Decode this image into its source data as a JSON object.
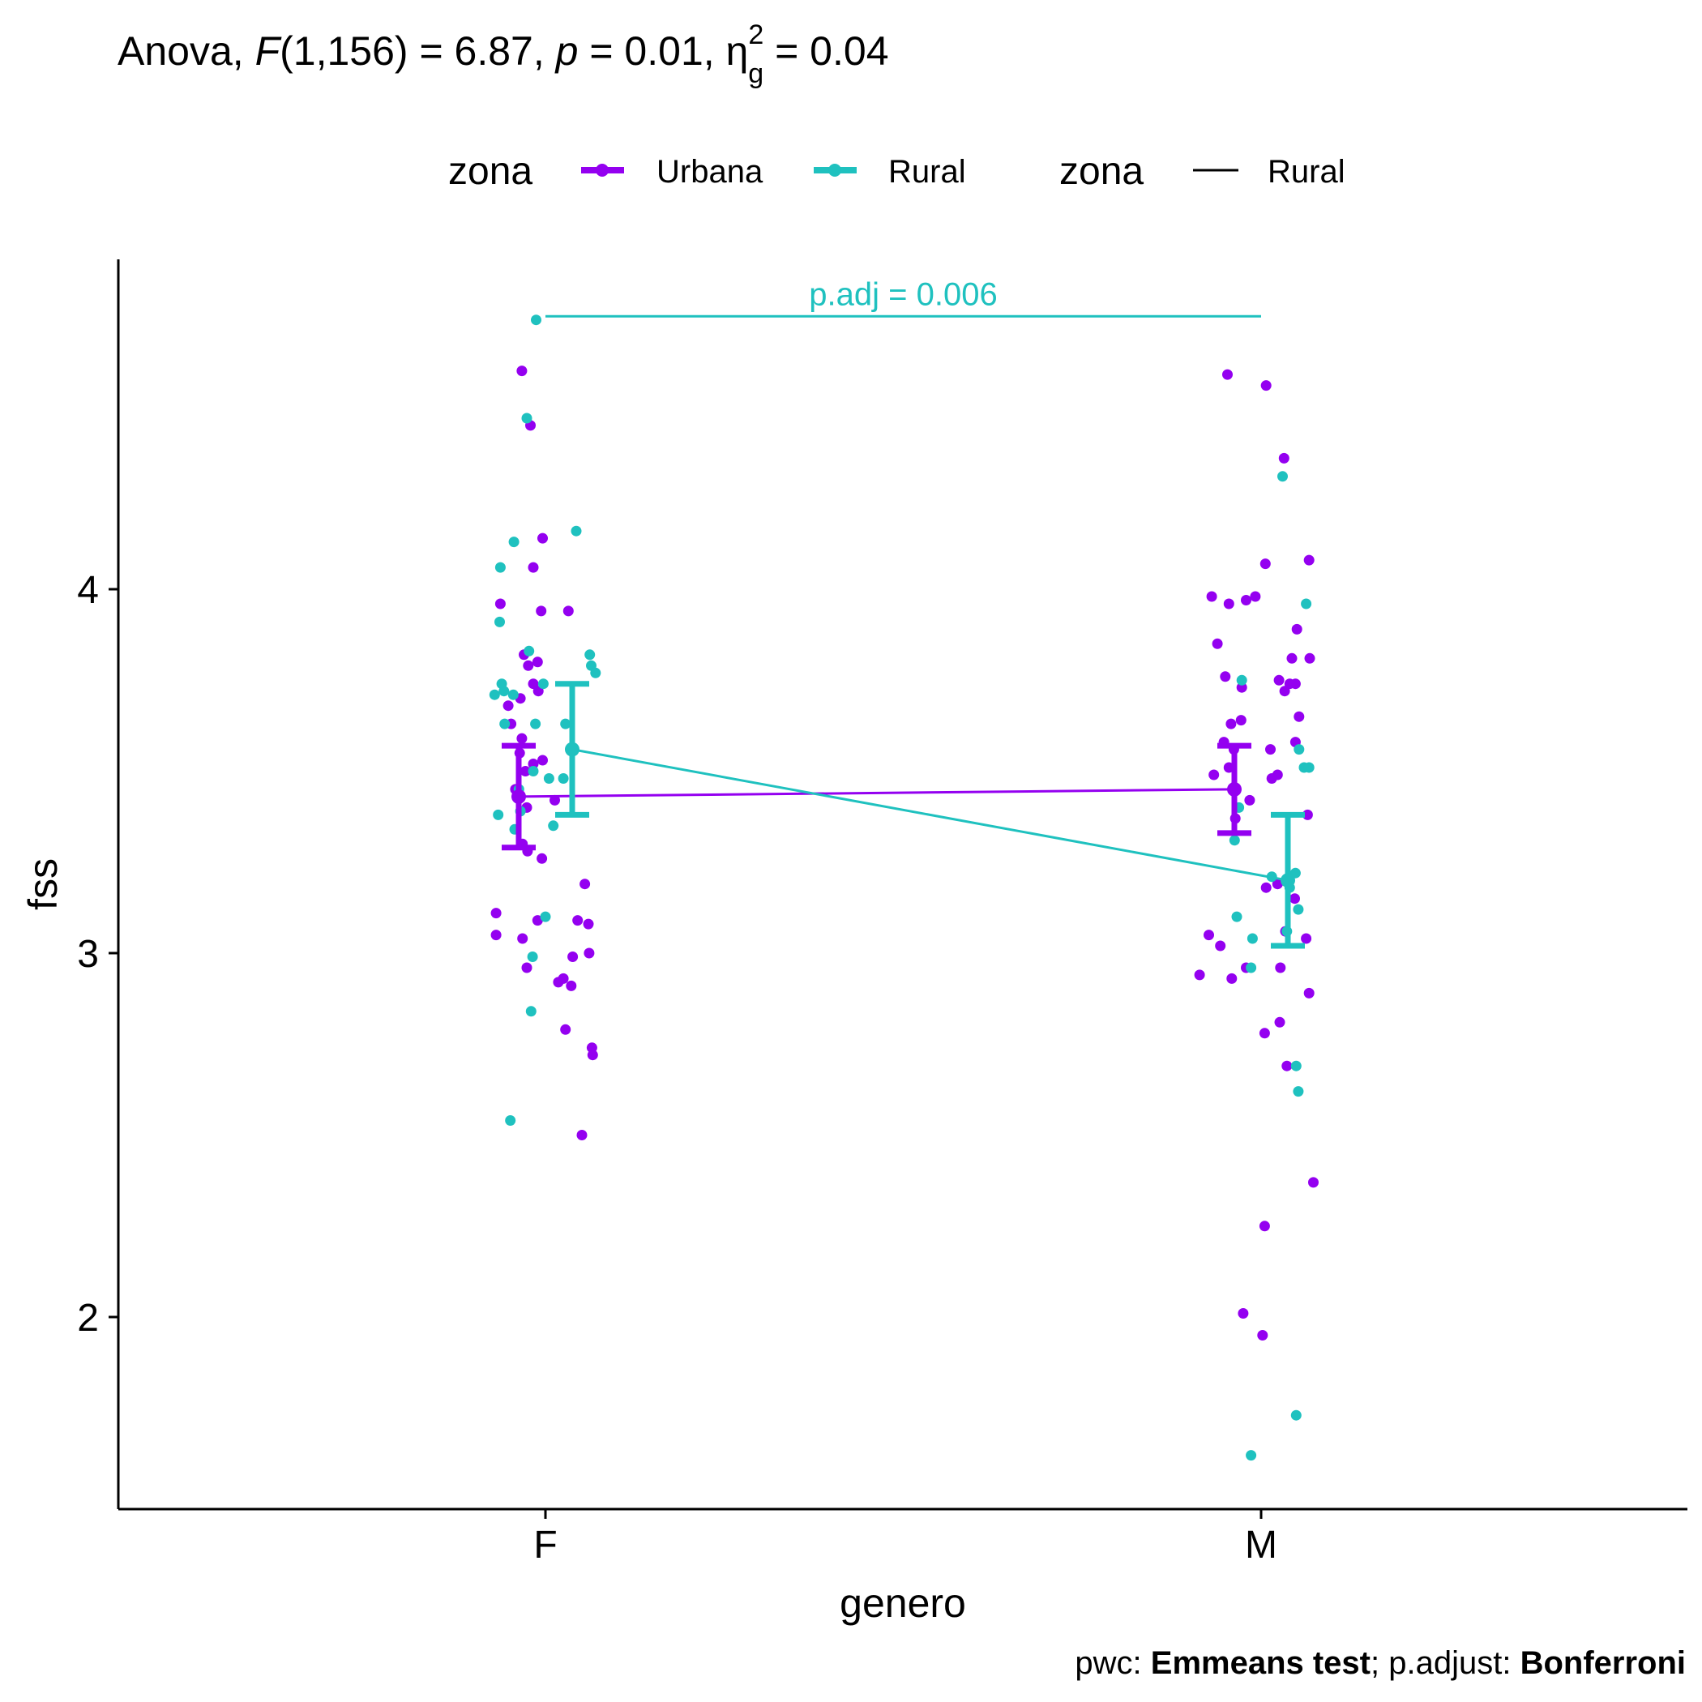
{
  "chart_data": {
    "type": "scatter",
    "title": {
      "prefix": "Anova, ",
      "f_symbol": "F",
      "df": "(1,156)",
      "f_value": " = 6.87, ",
      "p_symbol": "p",
      "p_value": " = 0.01, ",
      "eta_symbol": "η",
      "eta_sub": "g",
      "eta_sup": "2",
      "eta_value": " = 0.04"
    },
    "xlabel": "genero",
    "ylabel": "fss",
    "categories": [
      "F",
      "M"
    ],
    "ylim": [
      1.5,
      4.9
    ],
    "yticks": [
      "2",
      "3",
      "4"
    ],
    "ytick_values": [
      2,
      3,
      4
    ],
    "grid": false,
    "legend": {
      "position": "top",
      "groups": [
        {
          "title": "zona",
          "entries": [
            "Urbana",
            "Rural"
          ],
          "symbol": "point-line"
        },
        {
          "title": "zona",
          "entries": [
            "Rural"
          ],
          "symbol": "line"
        }
      ]
    },
    "colors": {
      "Urbana": "#9400f0",
      "Rural": "#1fc1bf"
    },
    "series": [
      {
        "name": "Urbana",
        "means": [
          3.43,
          3.45
        ],
        "ci_low": [
          3.29,
          3.33
        ],
        "ci_high": [
          3.57,
          3.57
        ],
        "points": [
          [
            [
              -0.033,
              4.6
            ],
            [
              -0.021,
              4.45
            ],
            [
              -0.004,
              4.14
            ],
            [
              -0.017,
              4.06
            ],
            [
              -0.063,
              3.96
            ],
            [
              -0.006,
              3.94
            ],
            [
              0.032,
              3.94
            ],
            [
              -0.03,
              3.82
            ],
            [
              -0.024,
              3.79
            ],
            [
              -0.011,
              3.8
            ],
            [
              -0.017,
              3.74
            ],
            [
              -0.01,
              3.72
            ],
            [
              -0.035,
              3.7
            ],
            [
              -0.052,
              3.68
            ],
            [
              -0.048,
              3.63
            ],
            [
              -0.033,
              3.59
            ],
            [
              -0.036,
              3.55
            ],
            [
              -0.004,
              3.53
            ],
            [
              -0.017,
              3.52
            ],
            [
              -0.028,
              3.5
            ],
            [
              -0.042,
              3.45
            ],
            [
              -0.026,
              3.4
            ],
            [
              0.013,
              3.42
            ],
            [
              -0.032,
              3.3
            ],
            [
              -0.025,
              3.28
            ],
            [
              -0.005,
              3.26
            ],
            [
              0.055,
              3.19
            ],
            [
              -0.069,
              3.11
            ],
            [
              0.045,
              3.09
            ],
            [
              0.06,
              3.08
            ],
            [
              -0.011,
              3.09
            ],
            [
              -0.032,
              3.04
            ],
            [
              -0.069,
              3.05
            ],
            [
              0.061,
              3.0
            ],
            [
              0.038,
              2.99
            ],
            [
              -0.026,
              2.96
            ],
            [
              0.036,
              2.91
            ],
            [
              0.025,
              2.93
            ],
            [
              0.018,
              2.92
            ],
            [
              0.028,
              2.79
            ],
            [
              0.065,
              2.74
            ],
            [
              0.066,
              2.72
            ],
            [
              0.051,
              2.5
            ]
          ],
          [
            [
              -0.047,
              4.59
            ],
            [
              0.007,
              4.56
            ],
            [
              0.032,
              4.36
            ],
            [
              0.067,
              4.08
            ],
            [
              0.006,
              4.07
            ],
            [
              -0.069,
              3.98
            ],
            [
              -0.021,
              3.97
            ],
            [
              -0.045,
              3.96
            ],
            [
              -0.008,
              3.98
            ],
            [
              0.05,
              3.89
            ],
            [
              -0.061,
              3.85
            ],
            [
              0.068,
              3.81
            ],
            [
              0.043,
              3.81
            ],
            [
              0.048,
              3.74
            ],
            [
              0.033,
              3.72
            ],
            [
              0.025,
              3.75
            ],
            [
              0.04,
              3.74
            ],
            [
              -0.027,
              3.73
            ],
            [
              -0.05,
              3.76
            ],
            [
              -0.028,
              3.64
            ],
            [
              -0.042,
              3.63
            ],
            [
              0.053,
              3.65
            ],
            [
              0.048,
              3.58
            ],
            [
              -0.052,
              3.58
            ],
            [
              -0.038,
              3.56
            ],
            [
              0.013,
              3.56
            ],
            [
              -0.066,
              3.49
            ],
            [
              -0.045,
              3.51
            ],
            [
              0.015,
              3.48
            ],
            [
              0.023,
              3.49
            ],
            [
              0.065,
              3.38
            ],
            [
              -0.036,
              3.37
            ],
            [
              -0.016,
              3.42
            ],
            [
              0.007,
              3.18
            ],
            [
              0.023,
              3.19
            ],
            [
              0.047,
              3.15
            ],
            [
              -0.073,
              3.05
            ],
            [
              0.063,
              3.04
            ],
            [
              -0.057,
              3.02
            ],
            [
              0.034,
              3.06
            ],
            [
              -0.021,
              2.96
            ],
            [
              0.027,
              2.96
            ],
            [
              -0.041,
              2.93
            ],
            [
              -0.086,
              2.94
            ],
            [
              0.067,
              2.89
            ],
            [
              0.026,
              2.81
            ],
            [
              0.005,
              2.78
            ],
            [
              0.036,
              2.69
            ],
            [
              0.073,
              2.37
            ],
            [
              0.005,
              2.25
            ],
            [
              -0.025,
              2.01
            ],
            [
              0.002,
              1.95
            ]
          ]
        ]
      },
      {
        "name": "Rural",
        "means": [
          3.56,
          3.2
        ],
        "ci_low": [
          3.38,
          3.02
        ],
        "ci_high": [
          3.74,
          3.38
        ],
        "points": [
          [
            [
              -0.013,
              4.74
            ],
            [
              -0.026,
              4.47
            ],
            [
              0.043,
              4.16
            ],
            [
              -0.044,
              4.13
            ],
            [
              -0.063,
              4.06
            ],
            [
              -0.064,
              3.91
            ],
            [
              -0.023,
              3.83
            ],
            [
              0.062,
              3.82
            ],
            [
              0.064,
              3.79
            ],
            [
              -0.003,
              3.74
            ],
            [
              -0.061,
              3.74
            ],
            [
              -0.045,
              3.71
            ],
            [
              -0.058,
              3.72
            ],
            [
              -0.071,
              3.71
            ],
            [
              -0.057,
              3.63
            ],
            [
              -0.014,
              3.63
            ],
            [
              0.028,
              3.63
            ],
            [
              -0.017,
              3.5
            ],
            [
              0.025,
              3.48
            ],
            [
              -0.037,
              3.45
            ],
            [
              -0.066,
              3.38
            ],
            [
              -0.043,
              3.34
            ],
            [
              0.011,
              3.35
            ],
            [
              0.0,
              3.1
            ],
            [
              -0.018,
              2.99
            ],
            [
              -0.02,
              2.84
            ],
            [
              -0.049,
              2.54
            ],
            [
              0.005,
              3.48
            ],
            [
              0.07,
              3.77
            ],
            [
              -0.035,
              3.39
            ]
          ],
          [
            [
              0.03,
              4.31
            ],
            [
              0.063,
              3.96
            ],
            [
              0.053,
              3.56
            ],
            [
              0.06,
              3.51
            ],
            [
              0.067,
              3.51
            ],
            [
              -0.027,
              3.75
            ],
            [
              -0.031,
              3.4
            ],
            [
              -0.037,
              3.31
            ],
            [
              0.048,
              3.22
            ],
            [
              0.052,
              3.12
            ],
            [
              0.036,
              3.06
            ],
            [
              -0.012,
              3.04
            ],
            [
              -0.034,
              3.1
            ],
            [
              -0.014,
              2.96
            ],
            [
              0.052,
              2.62
            ],
            [
              0.049,
              2.69
            ],
            [
              0.049,
              1.73
            ],
            [
              -0.014,
              1.62
            ],
            [
              0.04,
              3.18
            ],
            [
              0.015,
              3.21
            ]
          ]
        ]
      }
    ],
    "annotation": {
      "text": "p.adj = 0.006",
      "between": [
        "F",
        "M"
      ],
      "y": 4.75
    },
    "caption": {
      "pwc_label": "pwc: ",
      "pwc_value": "Emmeans test",
      "sep": "; p.adjust: ",
      "adjust_value": "Bonferroni"
    }
  }
}
